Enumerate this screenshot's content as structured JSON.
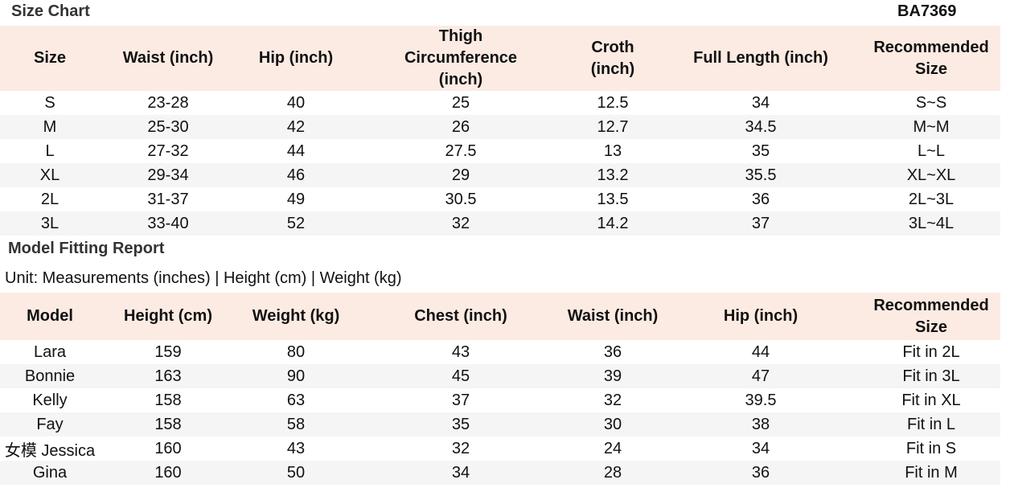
{
  "size_chart": {
    "title": "Size Chart",
    "code": "BA7369",
    "headers": [
      "Size",
      "Waist (inch)",
      "Hip (inch)",
      "Thigh Circumference (inch)",
      "Croth (inch)",
      "Full Length (inch)",
      "Recommended Size"
    ],
    "rows": [
      [
        "S",
        "23-28",
        "40",
        "25",
        "12.5",
        "34",
        "S~S"
      ],
      [
        "M",
        "25-30",
        "42",
        "26",
        "12.7",
        "34.5",
        "M~M"
      ],
      [
        "L",
        "27-32",
        "44",
        "27.5",
        "13",
        "35",
        "L~L"
      ],
      [
        "XL",
        "29-34",
        "46",
        "29",
        "13.2",
        "35.5",
        "XL~XL"
      ],
      [
        "2L",
        "31-37",
        "49",
        "30.5",
        "13.5",
        "36",
        "2L~3L"
      ],
      [
        "3L",
        "33-40",
        "52",
        "32",
        "14.2",
        "37",
        "3L~4L"
      ]
    ]
  },
  "model_report": {
    "title": "Model Fitting Report",
    "unit_text": "Unit: Measurements (inches) | Height (cm) | Weight (kg)",
    "headers": [
      "Model",
      "Height (cm)",
      "Weight (kg)",
      "Chest (inch)",
      "Waist (inch)",
      "Hip (inch)",
      "Recommended Size"
    ],
    "rows": [
      [
        "Lara",
        "159",
        "80",
        "43",
        "36",
        "44",
        "Fit in 2L"
      ],
      [
        "Bonnie",
        "163",
        "90",
        "45",
        "39",
        "47",
        "Fit in 3L"
      ],
      [
        "Kelly",
        "158",
        "63",
        "37",
        "32",
        "39.5",
        "Fit in XL"
      ],
      [
        "Fay",
        "158",
        "58",
        "35",
        "30",
        "38",
        "Fit in L"
      ],
      [
        "女模 Jessica",
        "160",
        "43",
        "32",
        "24",
        "34",
        "Fit in S"
      ],
      [
        "Gina",
        "160",
        "50",
        "34",
        "28",
        "36",
        "Fit in M"
      ]
    ]
  },
  "colors": {
    "header_bg": "#fcebe3",
    "stripe_bg": "#f5f5f5"
  }
}
